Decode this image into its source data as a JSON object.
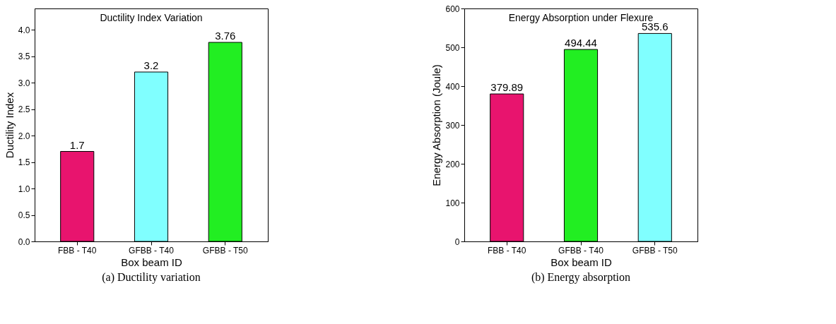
{
  "chart_data": [
    {
      "type": "bar",
      "title": "Ductility Index Variation",
      "xlabel": "Box beam ID",
      "ylabel": "Ductility Index",
      "categories": [
        "FBB - T40",
        "GFBB - T40",
        "GFBB - T50"
      ],
      "values": [
        1.7,
        3.2,
        3.76
      ],
      "colors": [
        "#e8146e",
        "#80ffff",
        "#22ee22"
      ],
      "ylim": [
        0,
        4.4
      ],
      "yticks": [
        {
          "value": 0,
          "label": "0.0"
        },
        0.5,
        {
          "value": 1,
          "label": "1.0"
        },
        1.5,
        {
          "value": 2,
          "label": "2.0"
        },
        2.5,
        {
          "value": 3,
          "label": "3.0"
        },
        3.5,
        {
          "value": 4,
          "label": "4.0"
        }
      ],
      "data_labels": true,
      "grid": false,
      "annotations": [
        "(a) Ductility variation"
      ]
    },
    {
      "type": "bar",
      "title": "Energy Absorption under Flexure",
      "xlabel": "Box beam ID",
      "ylabel": "Energy Absorption (Joule)",
      "categories": [
        "FBB - T40",
        "GFBB - T40",
        "GFBB - T50"
      ],
      "values": [
        379.89,
        494.44,
        535.6
      ],
      "colors": [
        "#e8146e",
        "#22ee22",
        "#80ffff"
      ],
      "ylim": [
        0,
        600
      ],
      "yticks": [
        0,
        100,
        200,
        300,
        400,
        500,
        600
      ],
      "data_labels": true,
      "grid": false,
      "annotations": [
        "(b) Energy absorption"
      ]
    }
  ]
}
